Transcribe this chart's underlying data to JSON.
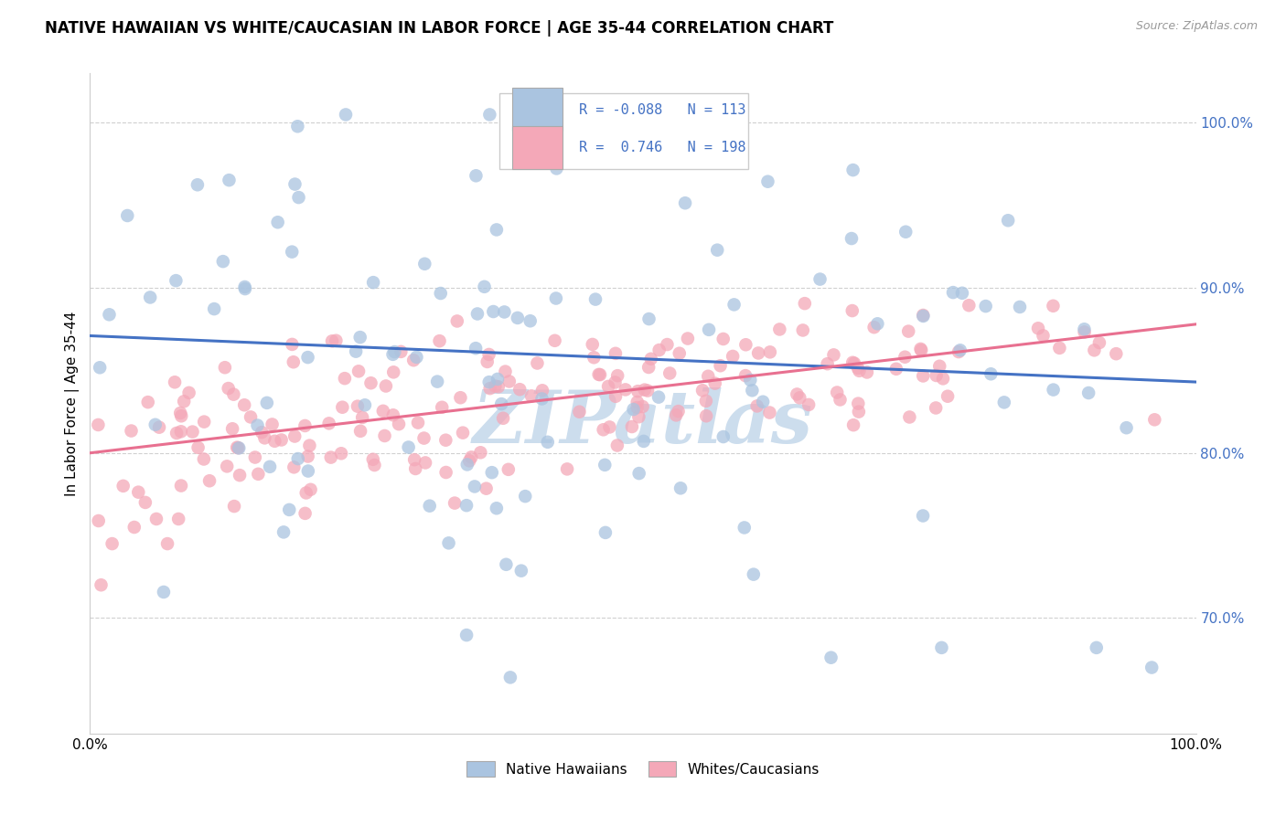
{
  "title": "NATIVE HAWAIIAN VS WHITE/CAUCASIAN IN LABOR FORCE | AGE 35-44 CORRELATION CHART",
  "source": "Source: ZipAtlas.com",
  "ylabel": "In Labor Force | Age 35-44",
  "xlim": [
    0.0,
    1.0
  ],
  "ylim": [
    0.63,
    1.03
  ],
  "yticks": [
    0.7,
    0.8,
    0.9,
    1.0
  ],
  "xticks": [
    0.0,
    1.0
  ],
  "legend_labels": [
    "Native Hawaiians",
    "Whites/Caucasians"
  ],
  "blue_R": "-0.088",
  "blue_N": "113",
  "pink_R": "0.746",
  "pink_N": "198",
  "blue_color": "#aac4e0",
  "pink_color": "#f4a8b8",
  "blue_line_color": "#4472c4",
  "pink_line_color": "#e87090",
  "watermark": "ZIPatlas",
  "watermark_color": "#ccdded",
  "blue_line_y0": 0.871,
  "blue_line_y1": 0.843,
  "pink_line_y0": 0.8,
  "pink_line_y1": 0.878
}
